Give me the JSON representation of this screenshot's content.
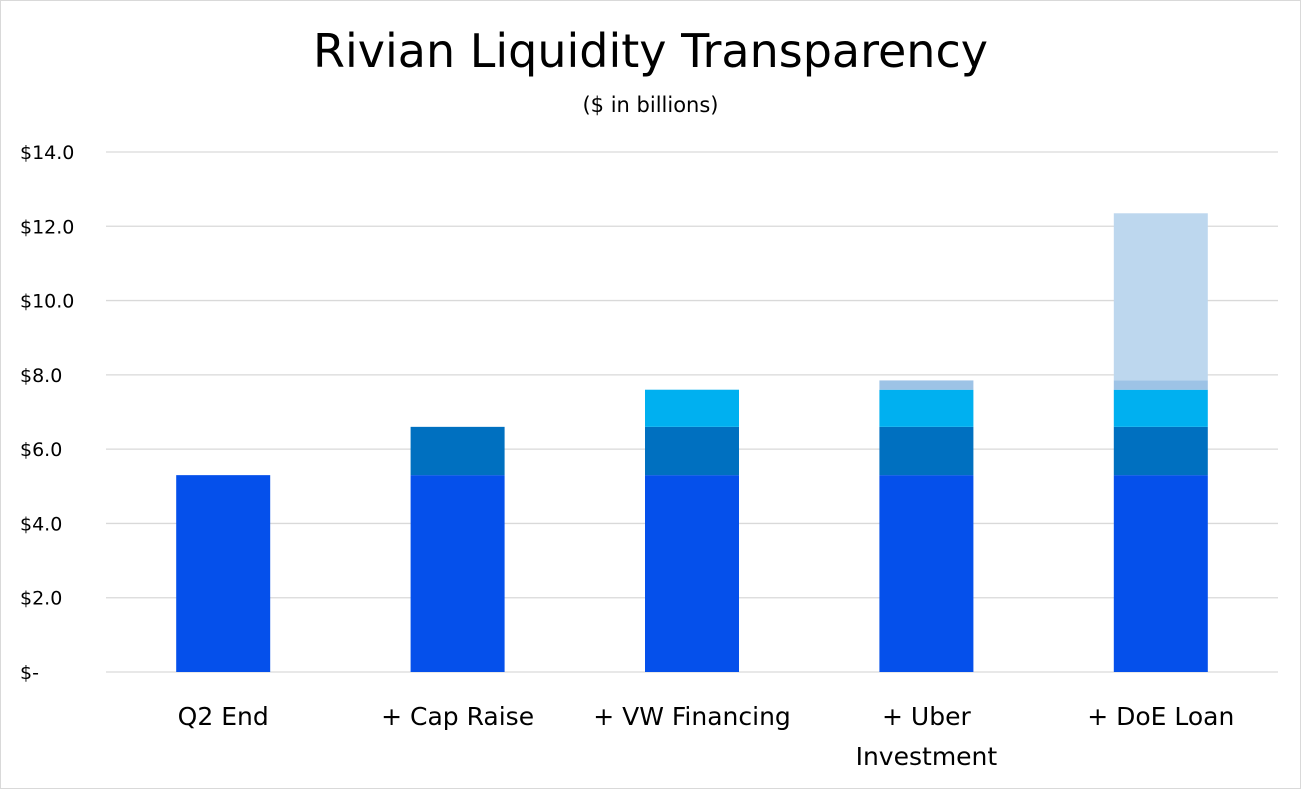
{
  "chart_data": {
    "type": "bar",
    "stacked": true,
    "title": "Rivian Liquidity Transparency",
    "subtitle": "($ in billions)",
    "xlabel": "",
    "ylabel": "",
    "ylim": [
      0,
      14
    ],
    "grid": true,
    "categories": [
      [
        "Q2 End"
      ],
      [
        "+ Cap Raise"
      ],
      [
        "+ VW Financing"
      ],
      [
        "+  Uber",
        "Investment"
      ],
      [
        "+ DoE Loan"
      ]
    ],
    "y_tick_values": [
      0,
      2,
      4,
      6,
      8,
      10,
      12,
      14
    ],
    "y_tick_labels": [
      "$-",
      "$2.0",
      "$4.0",
      "$6.0",
      "$8.0",
      "$10.0",
      "$12.0",
      "$14.0"
    ],
    "series": [
      {
        "color": "#0550EB",
        "values": [
          5.3,
          5.3,
          5.3,
          5.3,
          5.3
        ]
      },
      {
        "color": "#0070C0",
        "values": [
          0,
          1.3,
          1.3,
          1.3,
          1.3
        ]
      },
      {
        "color": "#00B0F0",
        "values": [
          0,
          0,
          1.0,
          1.0,
          1.0
        ]
      },
      {
        "color": "#9DC3E6",
        "values": [
          0,
          0,
          0,
          0.25,
          0.25
        ]
      },
      {
        "color": "#BDD7EE",
        "values": [
          0,
          0,
          0,
          0,
          4.5
        ]
      }
    ]
  }
}
